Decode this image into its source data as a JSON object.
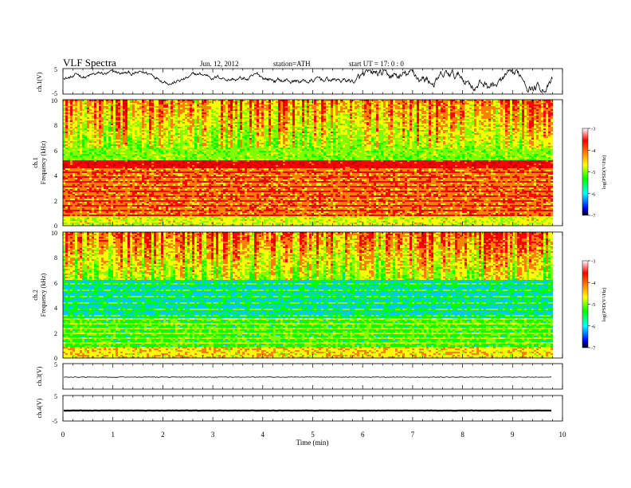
{
  "header": {
    "title": "VLF  Spectra",
    "date": "Jun. 12, 2012",
    "station": "station=ATH",
    "start": "start  UT  =    17: 0  : 0"
  },
  "colorbar": {
    "label": "log(PSD(V²/Hz)",
    "ticks": [
      "-3",
      "-4",
      "-5",
      "-6",
      "-7"
    ],
    "stops": [
      "#000000",
      "#0000ff",
      "#00ffff",
      "#00ff00",
      "#ffff00",
      "#ff8000",
      "#ff0000",
      "#ffffff"
    ]
  },
  "chart_data": [
    {
      "type": "line",
      "name": "ch.1 time series",
      "ylabel": "ch.1(V)",
      "ylim": [
        -5,
        5
      ],
      "yticks": [
        "5",
        "-5"
      ],
      "xlim": [
        0,
        9.8
      ]
    },
    {
      "type": "heatmap",
      "name": "ch.1 spectrogram",
      "ylabel": "ch.1\nFrequency  (kHz)",
      "ylim": [
        0,
        10
      ],
      "yticks": [
        "10",
        "8",
        "6",
        "4",
        "2",
        "0"
      ],
      "xlim": [
        0,
        9.8
      ],
      "zlim": [
        -7,
        -3
      ]
    },
    {
      "type": "heatmap",
      "name": "ch.2 spectrogram",
      "ylabel": "ch.2\nFrequency  (kHz)",
      "ylim": [
        0,
        10
      ],
      "yticks": [
        "10",
        "8",
        "6",
        "4",
        "2",
        "0"
      ],
      "xlim": [
        0,
        9.8
      ],
      "zlim": [
        -7,
        -3
      ]
    },
    {
      "type": "line",
      "name": "ch.3 time series",
      "ylabel": "ch.3(V)",
      "ylim": [
        -5,
        5
      ],
      "yticks": [
        "5"
      ],
      "xlim": [
        0,
        9.8
      ],
      "level": -0.3
    },
    {
      "type": "line",
      "name": "ch.4 time series",
      "ylabel": "ch.4(V)",
      "ylim": [
        -5,
        5
      ],
      "yticks": [
        "5",
        "-5"
      ],
      "xlim": [
        0,
        9.8
      ],
      "level": -0.9
    }
  ],
  "x_axis": {
    "label": "Time  (min)",
    "range": [
      0,
      10
    ],
    "ticks": [
      "0",
      "1",
      "2",
      "3",
      "4",
      "5",
      "6",
      "7",
      "8",
      "9",
      "10"
    ]
  }
}
